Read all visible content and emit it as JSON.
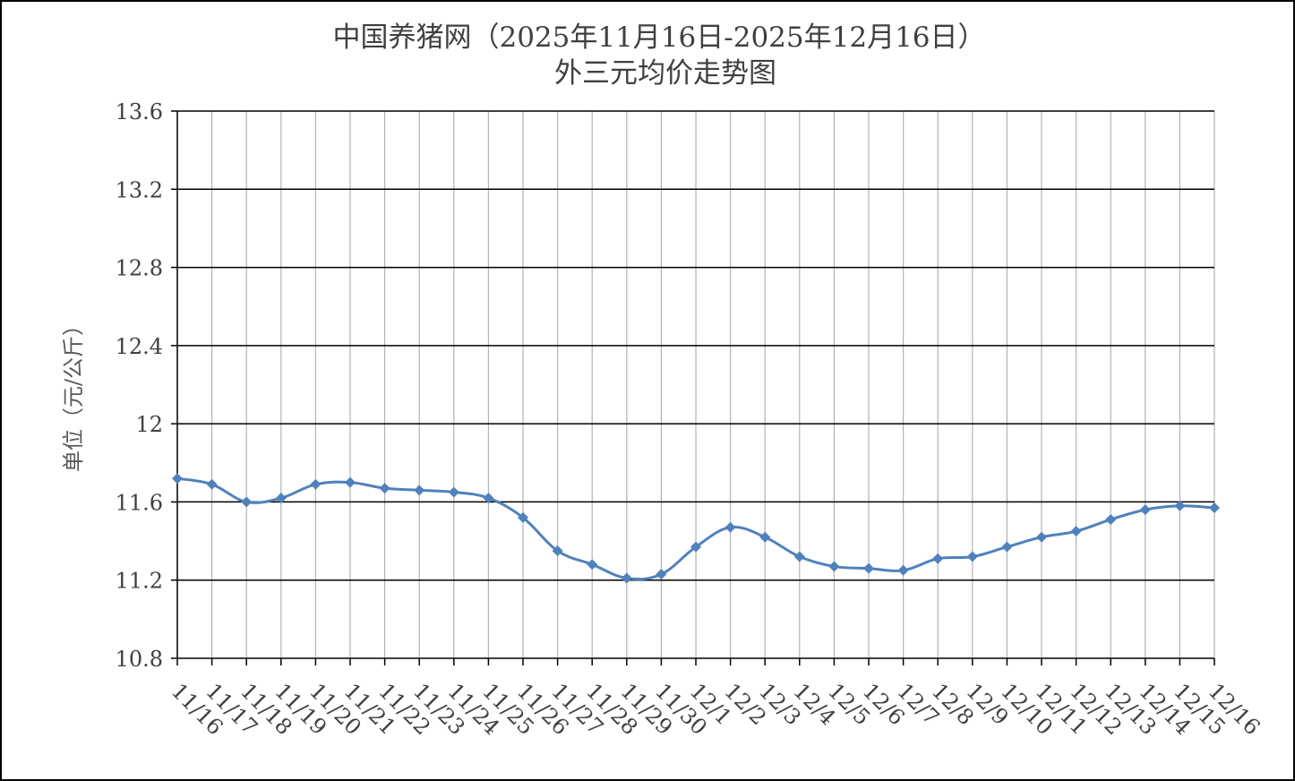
{
  "chart_data": {
    "type": "line",
    "title": "中国养猪网（2025年11月16日-2025年12月16日）",
    "subtitle": "外三元均价走势图",
    "xlabel": "",
    "ylabel": "单位（元/公斤）",
    "ylim": [
      10.8,
      13.6
    ],
    "yticks": [
      "13.6",
      "13.2",
      "12.8",
      "12.4",
      "12",
      "11.6",
      "11.2",
      "10.8"
    ],
    "ytick_values": [
      13.6,
      13.2,
      12.8,
      12.4,
      12.0,
      11.6,
      11.2,
      10.8
    ],
    "grid": true,
    "legend": "none",
    "line_color": "#4F81BD",
    "categories": [
      "11/16",
      "11/17",
      "11/18",
      "11/19",
      "11/20",
      "11/21",
      "11/22",
      "11/23",
      "11/24",
      "11/25",
      "11/26",
      "11/27",
      "11/28",
      "11/29",
      "11/30",
      "12/1",
      "12/2",
      "12/3",
      "12/4",
      "12/5",
      "12/6",
      "12/7",
      "12/8",
      "12/9",
      "12/10",
      "12/11",
      "12/12",
      "12/13",
      "12/14",
      "12/15",
      "12/16"
    ],
    "series": [
      {
        "values": [
          11.72,
          11.69,
          11.6,
          11.62,
          11.69,
          11.7,
          11.67,
          11.66,
          11.65,
          11.62,
          11.52,
          11.35,
          11.28,
          11.21,
          11.23,
          11.37,
          11.47,
          11.42,
          11.32,
          11.27,
          11.26,
          11.25,
          11.31,
          11.32,
          11.37,
          11.42,
          11.45,
          11.51,
          11.56,
          11.58,
          11.57
        ]
      }
    ]
  }
}
